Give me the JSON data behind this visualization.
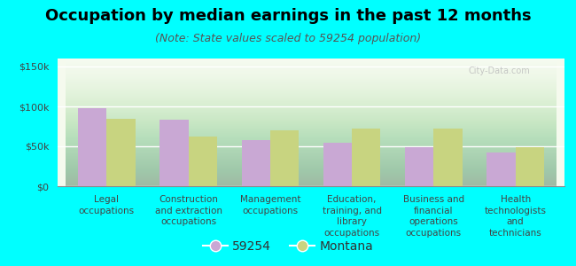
{
  "title": "Occupation by median earnings in the past 12 months",
  "subtitle": "(Note: State values scaled to 59254 population)",
  "categories": [
    "Legal\noccupations",
    "Construction\nand extraction\noccupations",
    "Management\noccupations",
    "Education,\ntraining, and\nlibrary\noccupations",
    "Business and\nfinancial\noperations\noccupations",
    "Health\ntechnologists\nand\ntechnicians"
  ],
  "values_59254": [
    98000,
    83000,
    58000,
    55000,
    49000,
    42000
  ],
  "values_montana": [
    85000,
    62000,
    70000,
    72000,
    72000,
    49000
  ],
  "bar_color_59254": "#c9a8d4",
  "bar_color_montana": "#c8d480",
  "background_color": "#00ffff",
  "ylim": [
    0,
    160000
  ],
  "yticks": [
    0,
    50000,
    100000,
    150000
  ],
  "ytick_labels": [
    "$0",
    "$50k",
    "$100k",
    "$150k"
  ],
  "legend_label_1": "59254",
  "legend_label_2": "Montana",
  "bar_width": 0.35,
  "title_fontsize": 13,
  "subtitle_fontsize": 9,
  "tick_fontsize": 8,
  "xtick_fontsize": 7.5,
  "watermark": "City-Data.com"
}
